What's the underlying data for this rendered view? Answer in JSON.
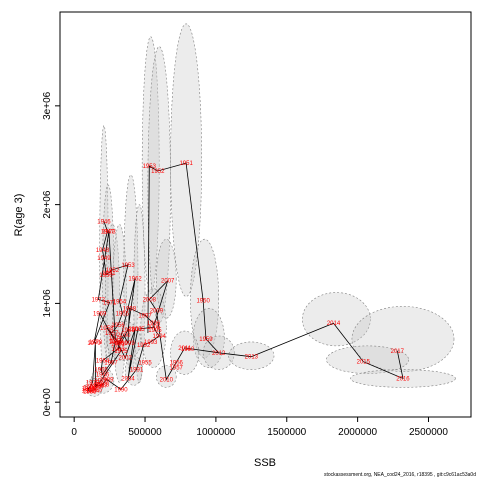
{
  "chart_data": {
    "type": "scatter",
    "xlabel": "SSB",
    "ylabel": "R(age 3)",
    "xlim": [
      -100000,
      2800000
    ],
    "ylim": [
      -150000,
      3950000
    ],
    "xticks": [
      0,
      500000,
      1000000,
      1500000,
      2000000,
      2500000
    ],
    "xtick_labels": [
      "0",
      "500000",
      "1000000",
      "1500000",
      "2000000",
      "2500000"
    ],
    "yticks": [
      0,
      1000000,
      2000000,
      3000000
    ],
    "ytick_labels": [
      "0e+00",
      "1e+06",
      "2e+06",
      "3e+06"
    ],
    "grid": false,
    "point_color": "#ff0000",
    "ellipse_fill": "#c8c8c8",
    "line_color": "#000000",
    "points": [
      {
        "year": "1946",
        "x": 210000,
        "y": 1830000
      },
      {
        "year": "1947",
        "x": 235000,
        "y": 1730000
      },
      {
        "year": "1948",
        "x": 200000,
        "y": 1540000
      },
      {
        "year": "1949",
        "x": 210000,
        "y": 1460000
      },
      {
        "year": "1950",
        "x": 225000,
        "y": 1290000
      },
      {
        "year": "1951",
        "x": 245000,
        "y": 1310000
      },
      {
        "year": "1952",
        "x": 270000,
        "y": 1340000
      },
      {
        "year": "1953",
        "x": 380000,
        "y": 1390000
      },
      {
        "year": "1954",
        "x": 320000,
        "y": 1020000
      },
      {
        "year": "1955",
        "x": 340000,
        "y": 900000
      },
      {
        "year": "1956",
        "x": 310000,
        "y": 780000
      },
      {
        "year": "1957",
        "x": 265000,
        "y": 700000
      },
      {
        "year": "1958",
        "x": 230000,
        "y": 750000
      },
      {
        "year": "1959",
        "x": 300000,
        "y": 620000
      },
      {
        "year": "1960",
        "x": 330000,
        "y": 600000
      },
      {
        "year": "1961",
        "x": 380000,
        "y": 730000
      },
      {
        "year": "1962",
        "x": 430000,
        "y": 1250000
      },
      {
        "year": "1963",
        "x": 310000,
        "y": 540000
      },
      {
        "year": "1964",
        "x": 200000,
        "y": 420000
      },
      {
        "year": "1965",
        "x": 190000,
        "y": 330000
      },
      {
        "year": "1966",
        "x": 200000,
        "y": 280000
      },
      {
        "year": "1967",
        "x": 260000,
        "y": 400000
      },
      {
        "year": "1968",
        "x": 290000,
        "y": 610000
      },
      {
        "year": "1969",
        "x": 180000,
        "y": 900000
      },
      {
        "year": "1970",
        "x": 140000,
        "y": 600000
      },
      {
        "year": "1971",
        "x": 250000,
        "y": 1010000
      },
      {
        "year": "1972",
        "x": 170000,
        "y": 1040000
      },
      {
        "year": "1973",
        "x": 245000,
        "y": 1730000
      },
      {
        "year": "1974",
        "x": 290000,
        "y": 650000
      },
      {
        "year": "1975",
        "x": 330000,
        "y": 520000
      },
      {
        "year": "1976",
        "x": 190000,
        "y": 220000
      },
      {
        "year": "1977",
        "x": 150000,
        "y": 160000
      },
      {
        "year": "1978",
        "x": 150000,
        "y": 610000
      },
      {
        "year": "1979",
        "x": 130000,
        "y": 200000
      },
      {
        "year": "1980",
        "x": 110000,
        "y": 150000
      },
      {
        "year": "1981",
        "x": 100000,
        "y": 140000
      },
      {
        "year": "1982",
        "x": 100000,
        "y": 120000
      },
      {
        "year": "1983",
        "x": 110000,
        "y": 110000
      },
      {
        "year": "1984",
        "x": 130000,
        "y": 120000
      },
      {
        "year": "1985",
        "x": 150000,
        "y": 130000
      },
      {
        "year": "1986",
        "x": 160000,
        "y": 170000
      },
      {
        "year": "1987",
        "x": 190000,
        "y": 170000
      },
      {
        "year": "1988",
        "x": 200000,
        "y": 180000
      },
      {
        "year": "1989",
        "x": 230000,
        "y": 230000
      },
      {
        "year": "1990",
        "x": 330000,
        "y": 130000
      },
      {
        "year": "1991",
        "x": 440000,
        "y": 330000
      },
      {
        "year": "1992",
        "x": 490000,
        "y": 580000
      },
      {
        "year": "1993",
        "x": 540000,
        "y": 610000
      },
      {
        "year": "1994",
        "x": 600000,
        "y": 670000
      },
      {
        "year": "1995",
        "x": 570000,
        "y": 730000
      },
      {
        "year": "1996",
        "x": 560000,
        "y": 800000
      },
      {
        "year": "1997",
        "x": 500000,
        "y": 880000
      },
      {
        "year": "1998",
        "x": 390000,
        "y": 950000
      },
      {
        "year": "1999",
        "x": 380000,
        "y": 600000
      },
      {
        "year": "2000",
        "x": 350000,
        "y": 680000
      },
      {
        "year": "2001",
        "x": 310000,
        "y": 590000
      },
      {
        "year": "2002",
        "x": 360000,
        "y": 450000
      },
      {
        "year": "2003",
        "x": 430000,
        "y": 740000
      },
      {
        "year": "2004",
        "x": 380000,
        "y": 240000
      },
      {
        "year": "2005",
        "x": 450000,
        "y": 740000
      },
      {
        "year": "2006",
        "x": 560000,
        "y": 760000
      },
      {
        "year": "2007",
        "x": 660000,
        "y": 1230000
      },
      {
        "year": "2008",
        "x": 530000,
        "y": 1040000
      },
      {
        "year": "2009",
        "x": 580000,
        "y": 930000
      },
      {
        "year": "2010",
        "x": 650000,
        "y": 230000
      },
      {
        "year": "2011",
        "x": 780000,
        "y": 550000
      },
      {
        "year": "2012",
        "x": 1020000,
        "y": 500000
      },
      {
        "year": "2013",
        "x": 1250000,
        "y": 460000
      },
      {
        "year": "2014",
        "x": 1830000,
        "y": 800000
      },
      {
        "year": "2015",
        "x": 2040000,
        "y": 410000
      },
      {
        "year": "2016",
        "x": 2320000,
        "y": 240000
      },
      {
        "year": "2017",
        "x": 2280000,
        "y": 520000
      }
    ],
    "extra_labels": [
      {
        "year": "1950",
        "x": 910000,
        "y": 1030000
      },
      {
        "year": "1951",
        "x": 790000,
        "y": 2420000
      },
      {
        "year": "1952",
        "x": 590000,
        "y": 2340000
      },
      {
        "year": "1953",
        "x": 530000,
        "y": 2390000
      },
      {
        "year": "1959",
        "x": 930000,
        "y": 640000
      },
      {
        "year": "1960",
        "x": 800000,
        "y": 540000
      },
      {
        "year": "1955",
        "x": 500000,
        "y": 400000
      },
      {
        "year": "1956",
        "x": 720000,
        "y": 400000
      },
      {
        "year": "1957",
        "x": 720000,
        "y": 350000
      }
    ],
    "path_order": [
      "1951",
      "1952",
      "1953"
    ],
    "ellipses": [
      {
        "x": 210000,
        "y": 1500000,
        "rx": 30000,
        "ry": 1300000
      },
      {
        "x": 240000,
        "y": 1300000,
        "rx": 40000,
        "ry": 900000
      },
      {
        "x": 270000,
        "y": 1100000,
        "rx": 50000,
        "ry": 700000
      },
      {
        "x": 320000,
        "y": 1000000,
        "rx": 50000,
        "ry": 800000
      },
      {
        "x": 400000,
        "y": 1300000,
        "rx": 50000,
        "ry": 1000000
      },
      {
        "x": 460000,
        "y": 1100000,
        "rx": 40000,
        "ry": 900000
      },
      {
        "x": 540000,
        "y": 2400000,
        "rx": 60000,
        "ry": 1300000
      },
      {
        "x": 600000,
        "y": 2200000,
        "rx": 80000,
        "ry": 1400000
      },
      {
        "x": 790000,
        "y": 2450000,
        "rx": 110000,
        "ry": 1380000
      },
      {
        "x": 920000,
        "y": 1050000,
        "rx": 100000,
        "ry": 600000
      },
      {
        "x": 650000,
        "y": 1250000,
        "rx": 70000,
        "ry": 400000
      },
      {
        "x": 560000,
        "y": 750000,
        "rx": 90000,
        "ry": 400000
      },
      {
        "x": 950000,
        "y": 650000,
        "rx": 110000,
        "ry": 300000
      },
      {
        "x": 780000,
        "y": 500000,
        "rx": 100000,
        "ry": 220000
      },
      {
        "x": 1020000,
        "y": 500000,
        "rx": 110000,
        "ry": 170000
      },
      {
        "x": 1250000,
        "y": 470000,
        "rx": 160000,
        "ry": 140000
      },
      {
        "x": 1850000,
        "y": 840000,
        "rx": 240000,
        "ry": 270000
      },
      {
        "x": 2320000,
        "y": 640000,
        "rx": 360000,
        "ry": 330000
      },
      {
        "x": 2070000,
        "y": 430000,
        "rx": 290000,
        "ry": 140000
      },
      {
        "x": 2320000,
        "y": 240000,
        "rx": 370000,
        "ry": 90000
      },
      {
        "x": 350000,
        "y": 620000,
        "rx": 120000,
        "ry": 200000
      },
      {
        "x": 200000,
        "y": 220000,
        "rx": 80000,
        "ry": 130000
      },
      {
        "x": 140000,
        "y": 150000,
        "rx": 60000,
        "ry": 90000
      },
      {
        "x": 420000,
        "y": 320000,
        "rx": 60000,
        "ry": 150000
      },
      {
        "x": 650000,
        "y": 260000,
        "rx": 70000,
        "ry": 110000
      }
    ]
  },
  "footer": "stockassessment.org, NEA_cod24_2016, r18395 , git:c9c61ac53a0d"
}
